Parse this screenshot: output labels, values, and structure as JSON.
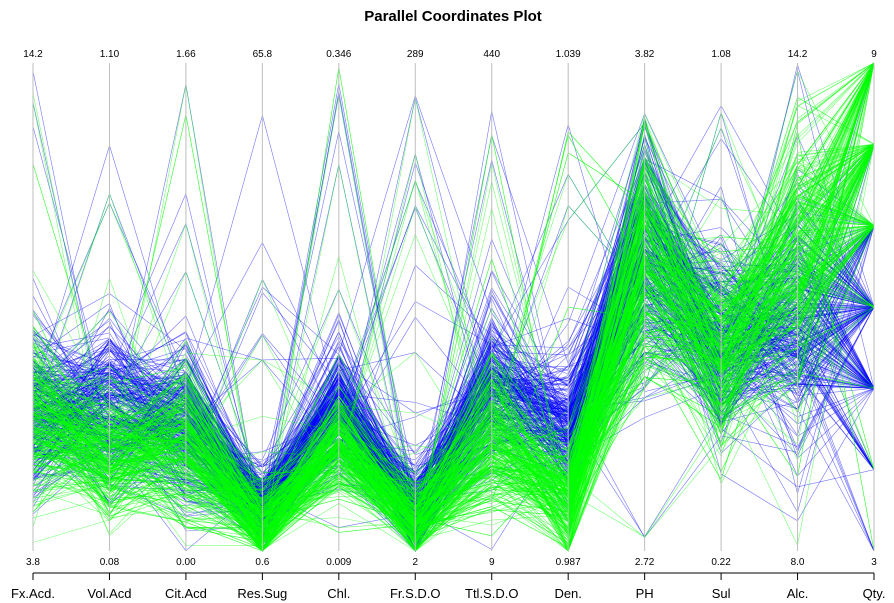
{
  "chart_data": {
    "type": "parallel-coordinates",
    "title": "Parallel Coordinates Plot",
    "axes": [
      {
        "label": "Fx.Acd.",
        "max": "14.2",
        "min": "3.8"
      },
      {
        "label": "Vol.Acd",
        "max": "1.10",
        "min": "0.08"
      },
      {
        "label": "Cit.Acd",
        "max": "1.66",
        "min": "0.00"
      },
      {
        "label": "Res.Sug",
        "max": "65.8",
        "min": "0.6"
      },
      {
        "label": "Chl.",
        "max": "0.346",
        "min": "0.009"
      },
      {
        "label": "Fr.S.D.O",
        "max": "289",
        "min": "2"
      },
      {
        "label": "Ttl.S.D.O",
        "max": "440",
        "min": "9"
      },
      {
        "label": "Den.",
        "max": "1.039",
        "min": "0.987"
      },
      {
        "label": "PH",
        "max": "3.82",
        "min": "2.72"
      },
      {
        "label": "Sul",
        "max": "1.08",
        "min": "0.22"
      },
      {
        "label": "Alc.",
        "max": "14.2",
        "min": "8.0"
      },
      {
        "label": "Qty.",
        "max": "9",
        "min": "3"
      }
    ],
    "series": [
      {
        "color": "#0000ff"
      },
      {
        "color": "#00ff00"
      }
    ],
    "profiles": [
      [
        0.28,
        0.3,
        0.25,
        0.09,
        0.3,
        0.08,
        0.33,
        0.25,
        0.6,
        0.42,
        0.46,
        0.45
      ],
      [
        0.27,
        0.2,
        0.22,
        0.05,
        0.22,
        0.06,
        0.22,
        0.1,
        0.6,
        0.4,
        0.6,
        0.82
      ]
    ],
    "spreads": [
      [
        0.1,
        0.1,
        0.1,
        0.05,
        0.08,
        0.06,
        0.1,
        0.08,
        0.15,
        0.12,
        0.16,
        0.12
      ],
      [
        0.1,
        0.08,
        0.1,
        0.05,
        0.07,
        0.05,
        0.09,
        0.07,
        0.15,
        0.12,
        0.16,
        0.1
      ]
    ],
    "xlabel": "",
    "ylabel": ""
  }
}
